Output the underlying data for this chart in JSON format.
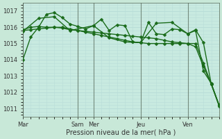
{
  "background_color": "#c8e8d8",
  "grid_color": "#b8ddd8",
  "plot_bg_color": "#c8eae0",
  "line_color": "#1a6b1a",
  "marker_color": "#1a6b1a",
  "title": "Pression niveau de la mer( hPa )",
  "ylim": [
    1010.5,
    1017.5
  ],
  "yticks": [
    1011,
    1012,
    1013,
    1014,
    1015,
    1016,
    1017
  ],
  "day_labels": [
    "Mar",
    "Sam",
    "Mer",
    "Jeu",
    "Ven"
  ],
  "day_x": [
    0,
    7,
    9,
    15,
    21
  ],
  "n_points": 26,
  "series": [
    {
      "x": [
        0,
        1,
        2,
        3,
        4,
        5,
        6,
        7,
        8,
        9,
        10,
        11,
        12,
        13,
        14,
        15,
        16,
        17,
        18,
        19,
        20,
        21,
        22,
        23,
        24,
        25
      ],
      "y": [
        1014.0,
        1015.4,
        1016.0,
        1016.8,
        1016.9,
        1016.6,
        1016.2,
        1016.05,
        1015.9,
        1016.1,
        1016.5,
        1015.8,
        1016.15,
        1016.1,
        1015.1,
        1015.05,
        1016.3,
        1015.6,
        1015.55,
        1015.9,
        1015.85,
        1015.6,
        1015.8,
        1013.3,
        1012.55,
        1011.2
      ]
    },
    {
      "x": [
        0,
        1,
        2,
        3,
        4,
        5,
        6,
        7,
        8,
        9,
        10,
        11,
        12,
        13,
        14,
        15,
        16,
        17,
        18,
        19,
        20,
        21,
        22,
        23,
        24,
        25
      ],
      "y": [
        1015.85,
        1016.0,
        1016.05,
        1016.0,
        1016.0,
        1015.95,
        1015.85,
        1015.8,
        1015.75,
        1015.7,
        1015.65,
        1015.6,
        1015.55,
        1015.5,
        1015.45,
        1015.4,
        1015.35,
        1015.3,
        1015.2,
        1015.1,
        1015.05,
        1015.0,
        1014.8,
        1013.6,
        1012.5,
        1011.2
      ]
    },
    {
      "x": [
        0,
        1,
        2,
        3,
        4,
        5,
        6,
        7,
        8,
        9,
        10,
        11,
        12,
        13,
        14,
        15,
        16,
        17,
        18,
        19,
        20,
        21,
        22,
        23,
        24,
        25
      ],
      "y": [
        1015.8,
        1015.85,
        1015.9,
        1015.95,
        1016.0,
        1016.0,
        1015.9,
        1015.8,
        1015.7,
        1015.6,
        1015.5,
        1015.4,
        1015.3,
        1015.2,
        1015.1,
        1015.05,
        1015.0,
        1015.0,
        1015.0,
        1015.0,
        1015.0,
        1015.0,
        1015.0,
        1013.8,
        1012.5,
        1011.2
      ]
    },
    {
      "x": [
        0,
        2,
        4,
        6,
        9,
        11,
        13,
        15,
        17,
        19,
        21,
        22,
        23,
        24,
        25
      ],
      "y": [
        1015.75,
        1016.55,
        1016.65,
        1015.8,
        1016.1,
        1015.35,
        1015.1,
        1015.05,
        1016.25,
        1016.3,
        1015.6,
        1015.85,
        1015.05,
        1012.5,
        1011.15
      ]
    }
  ],
  "vline_positions": [
    0,
    7,
    9,
    15,
    21
  ],
  "vline_color": "#556655",
  "marker_size": 2.5,
  "line_width": 1.0,
  "xlim": [
    0,
    25
  ]
}
